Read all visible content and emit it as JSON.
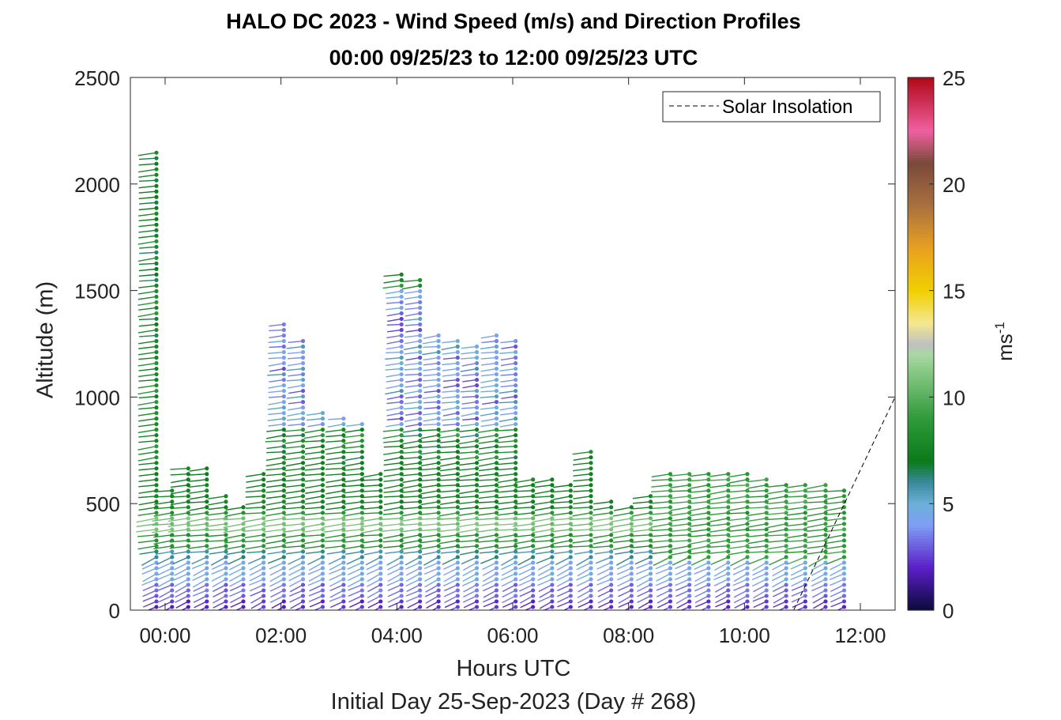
{
  "title_line1": "HALO DC 2023 - Wind Speed (m/s) and Direction Profiles",
  "title_line2": "00:00 09/25/23 to 12:00 09/25/23  UTC",
  "xlabel": "Hours UTC",
  "sublabel": "Initial Day 25-Sep-2023 (Day # 268)",
  "ylabel": "Altitude (m)",
  "colorbar_unit_base": "ms",
  "colorbar_unit_exp": "-1",
  "legend_label": "Solar Insolation",
  "chart_data": {
    "type": "scatter",
    "x_unit": "hours UTC",
    "y_unit": "m",
    "xlim": [
      -0.6,
      12.6
    ],
    "ylim": [
      0,
      2500
    ],
    "x_ticks": [
      0,
      2,
      4,
      6,
      8,
      10,
      12
    ],
    "x_tick_labels": [
      "00:00",
      "02:00",
      "04:00",
      "06:00",
      "08:00",
      "10:00",
      "12:00"
    ],
    "y_ticks": [
      0,
      500,
      1000,
      1500,
      2000,
      2500
    ],
    "y_tick_labels": [
      "0",
      "500",
      "1000",
      "1500",
      "2000",
      "2500"
    ],
    "colorbar": {
      "range": [
        0,
        25
      ],
      "ticks": [
        0,
        5,
        10,
        15,
        20,
        25
      ],
      "tick_labels": [
        "0",
        "5",
        "10",
        "15",
        "20",
        "25"
      ],
      "stops": [
        {
          "v": 0,
          "color": "#0a0a3a"
        },
        {
          "v": 2,
          "color": "#5a1fc8"
        },
        {
          "v": 4,
          "color": "#7f9ef5"
        },
        {
          "v": 5,
          "color": "#6cb0d8"
        },
        {
          "v": 6,
          "color": "#3a8a9e"
        },
        {
          "v": 7,
          "color": "#0a7a1a"
        },
        {
          "v": 9,
          "color": "#2f9a3a"
        },
        {
          "v": 12,
          "color": "#a8d8a0"
        },
        {
          "v": 12.5,
          "color": "#c0c0c0"
        },
        {
          "v": 13.5,
          "color": "#f5e890"
        },
        {
          "v": 15,
          "color": "#f0d000"
        },
        {
          "v": 17,
          "color": "#e8a020"
        },
        {
          "v": 19,
          "color": "#a87040"
        },
        {
          "v": 21,
          "color": "#7a4a3a"
        },
        {
          "v": 22.5,
          "color": "#f060a0"
        },
        {
          "v": 25,
          "color": "#b00818"
        }
      ]
    },
    "profile_times": [
      -0.15,
      0.12,
      0.4,
      0.72,
      1.05,
      1.35,
      1.7,
      2.05,
      2.38,
      2.72,
      3.08,
      3.4,
      3.72,
      4.08,
      4.4,
      4.72,
      5.05,
      5.38,
      5.72,
      6.05,
      6.35,
      6.68,
      7.0,
      7.35,
      7.7,
      8.05,
      8.38,
      8.72,
      9.05,
      9.38,
      9.72,
      10.05,
      10.38,
      10.72,
      11.05,
      11.4,
      11.72
    ],
    "profile_tops": [
      2150,
      580,
      680,
      690,
      550,
      500,
      650,
      1350,
      1280,
      950,
      900,
      880,
      650,
      1600,
      1550,
      1300,
      1280,
      1250,
      1300,
      1280,
      620,
      620,
      600,
      750,
      520,
      500,
      540,
      660,
      650,
      640,
      650,
      640,
      620,
      610,
      600,
      590,
      580
    ],
    "gate_spacing_m": 26,
    "solar_insolation_line": [
      [
        -0.6,
        0
      ],
      [
        10.85,
        0
      ],
      [
        12.6,
        1000
      ]
    ],
    "legend_position": "top-right"
  }
}
